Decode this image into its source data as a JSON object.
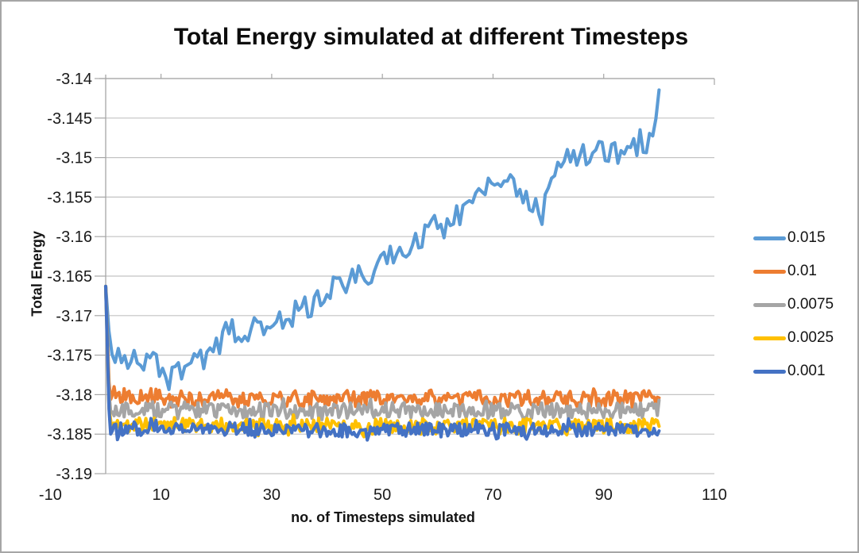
{
  "window": {
    "background_color": "#ffffff",
    "border_color": "#a6a6a6"
  },
  "chart_data": {
    "type": "line",
    "title": "Total Energy simulated at different Timesteps",
    "xlabel": "no. of Timesteps simulated",
    "ylabel": "Total Energy",
    "xlim": [
      -10,
      110
    ],
    "ylim": [
      -3.19,
      -3.14
    ],
    "x_tick_labels": [
      "-10",
      "10",
      "30",
      "50",
      "70",
      "90",
      "110"
    ],
    "x_tick_values": [
      -10,
      10,
      30,
      50,
      70,
      90,
      110
    ],
    "y_tick_labels": [
      "-3.14",
      "-3.145",
      "-3.15",
      "-3.155",
      "-3.16",
      "-3.165",
      "-3.17",
      "-3.175",
      "-3.18",
      "-3.185",
      "-3.19"
    ],
    "y_tick_values": [
      -3.14,
      -3.145,
      -3.15,
      -3.155,
      -3.16,
      -3.165,
      -3.17,
      -3.175,
      -3.18,
      -3.185,
      -3.19
    ],
    "grid": "horizontal-only",
    "gridline_color": "#c3c3c3",
    "axis_line_color": "#a6a6a6",
    "legend_position": "right",
    "x_data_range": [
      0,
      100
    ],
    "series": [
      {
        "name": "0.015",
        "color": "#5B9BD5",
        "description": "noisy series starting at -3.166, settling near -3.175, rising steadily to about -3.145 with end spike to -3.143",
        "noise_amplitude": 0.0016,
        "samples": 175,
        "trend": [
          [
            0,
            -3.1663
          ],
          [
            0.6,
            -3.173
          ],
          [
            1,
            -3.1745
          ],
          [
            4,
            -3.1752
          ],
          [
            8,
            -3.176
          ],
          [
            12,
            -3.1772
          ],
          [
            14,
            -3.1768
          ],
          [
            16,
            -3.1757
          ],
          [
            18,
            -3.1752
          ],
          [
            20,
            -3.174
          ],
          [
            22,
            -3.1715
          ],
          [
            24,
            -3.1722
          ],
          [
            27,
            -3.1716
          ],
          [
            30,
            -3.1712
          ],
          [
            33,
            -3.1702
          ],
          [
            36,
            -3.1692
          ],
          [
            38,
            -3.168
          ],
          [
            40,
            -3.1667
          ],
          [
            43,
            -3.166
          ],
          [
            46,
            -3.1652
          ],
          [
            48,
            -3.1645
          ],
          [
            50,
            -3.1632
          ],
          [
            52,
            -3.162
          ],
          [
            55,
            -3.161
          ],
          [
            58,
            -3.1593
          ],
          [
            60,
            -3.1583
          ],
          [
            63,
            -3.157
          ],
          [
            66,
            -3.1556
          ],
          [
            68,
            -3.1548
          ],
          [
            70,
            -3.1534
          ],
          [
            72,
            -3.1522
          ],
          [
            74,
            -3.1535
          ],
          [
            76,
            -3.155
          ],
          [
            78,
            -3.1568
          ],
          [
            79,
            -3.1575
          ],
          [
            80,
            -3.1525
          ],
          [
            82,
            -3.1507
          ],
          [
            85,
            -3.15
          ],
          [
            88,
            -3.1495
          ],
          [
            90,
            -3.149
          ],
          [
            92,
            -3.1497
          ],
          [
            94,
            -3.149
          ],
          [
            96,
            -3.1486
          ],
          [
            98,
            -3.1477
          ],
          [
            99,
            -3.147
          ],
          [
            99.6,
            -3.145
          ],
          [
            100,
            -3.1433
          ]
        ]
      },
      {
        "name": "0.01",
        "color": "#ED7D31",
        "description": "flat noisy band centered near -3.1805",
        "noise_amplitude": 0.0011,
        "samples": 330,
        "trend": [
          [
            0,
            -3.1663
          ],
          [
            0.7,
            -3.1798
          ],
          [
            2,
            -3.1801
          ],
          [
            10,
            -3.1803
          ],
          [
            30,
            -3.1806
          ],
          [
            60,
            -3.1805
          ],
          [
            100,
            -3.1806
          ]
        ]
      },
      {
        "name": "0.0075",
        "color": "#A5A5A5",
        "description": "flat noisy band centered near -3.182",
        "noise_amplitude": 0.001,
        "samples": 330,
        "trend": [
          [
            0,
            -3.1663
          ],
          [
            0.7,
            -3.1815
          ],
          [
            2,
            -3.1818
          ],
          [
            30,
            -3.182
          ],
          [
            100,
            -3.182
          ]
        ]
      },
      {
        "name": "0.0025",
        "color": "#FFC000",
        "description": "flat noisy band centered near -3.184, mostly hidden behind the 0.001 series",
        "noise_amplitude": 0.001,
        "samples": 330,
        "trend": [
          [
            0,
            -3.1663
          ],
          [
            0.7,
            -3.1835
          ],
          [
            2,
            -3.1838
          ],
          [
            50,
            -3.184
          ],
          [
            100,
            -3.184
          ]
        ]
      },
      {
        "name": "0.001",
        "color": "#4472C4",
        "description": "flat noisy band centered near -3.1845 with initial spike from -3.166 at timestep 0, drawn on top",
        "noise_amplitude": 0.0009,
        "samples": 330,
        "trend": [
          [
            0,
            -3.1663
          ],
          [
            0.7,
            -3.184
          ],
          [
            2,
            -3.1843
          ],
          [
            50,
            -3.1845
          ],
          [
            100,
            -3.1844
          ]
        ]
      }
    ]
  }
}
